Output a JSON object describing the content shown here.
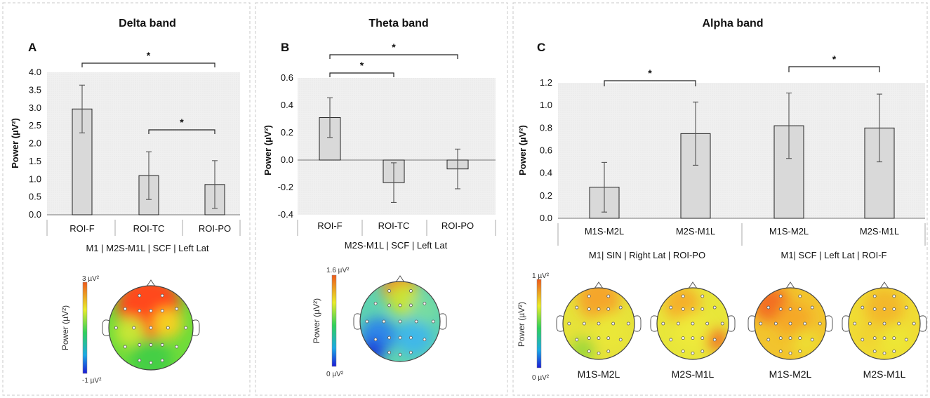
{
  "chart_data": [
    {
      "type": "bar",
      "panel": "A",
      "title": "Delta band",
      "ylabel": "Power (µV²)",
      "ylim": [
        0,
        4
      ],
      "yticks": [
        "0.0",
        "0.5",
        "1.0",
        "1.5",
        "2.0",
        "2.5",
        "3.0",
        "3.5",
        "4.0"
      ],
      "categories": [
        "ROI-F",
        "ROI-TC",
        "ROI-PO"
      ],
      "values": [
        2.97,
        1.1,
        0.85
      ],
      "errors": [
        0.67,
        0.67,
        0.67
      ],
      "condition": "M1 | M2S-M1L | SCF | Left Lat",
      "significance": [
        {
          "from": 0,
          "to": 2,
          "label": "*"
        },
        {
          "from": 1,
          "to": 2,
          "label": "*"
        }
      ],
      "colorbar": {
        "max": "3 µV²",
        "min": "-1 µV²",
        "label": "Power (µV²)"
      },
      "topomaps": [
        {
          "label": "",
          "pattern": "delta"
        }
      ]
    },
    {
      "type": "bar",
      "panel": "B",
      "title": "Theta band",
      "ylabel": "Power (µV²)",
      "ylim": [
        -0.4,
        0.6
      ],
      "yticks": [
        "-0.4",
        "-0.2",
        "0.0",
        "0.2",
        "0.4",
        "0.6"
      ],
      "categories": [
        "ROI-F",
        "ROI-TC",
        "ROI-PO"
      ],
      "values": [
        0.31,
        -0.165,
        -0.065
      ],
      "errors": [
        0.145,
        0.145,
        0.145
      ],
      "condition": "M2S-M1L | SCF | Left Lat",
      "significance": [
        {
          "from": 0,
          "to": 2,
          "label": "*"
        },
        {
          "from": 0,
          "to": 1,
          "label": "*"
        }
      ],
      "colorbar": {
        "max": "1.6 µV²",
        "min": "0 µV²",
        "label": "Power (µV²)"
      },
      "topomaps": [
        {
          "label": "",
          "pattern": "theta"
        }
      ]
    },
    {
      "type": "bar",
      "panel": "C",
      "title": "Alpha band",
      "ylabel": "Power (µV²)",
      "ylim": [
        0,
        1.2
      ],
      "yticks": [
        "0.0",
        "0.2",
        "0.4",
        "0.6",
        "0.8",
        "1.0",
        "1.2"
      ],
      "categories": [
        "M1S-M2L",
        "M2S-M1L",
        "M1S-M2L",
        "M2S-M1L"
      ],
      "values": [
        0.275,
        0.75,
        0.82,
        0.8
      ],
      "errors": [
        0.22,
        0.28,
        0.29,
        0.3
      ],
      "groups": [
        {
          "label": "M1| SIN | Right Lat | ROI-PO",
          "categories": [
            0,
            1
          ]
        },
        {
          "label": "M1| SCF | Left Lat | ROI-F",
          "categories": [
            2,
            3
          ]
        }
      ],
      "significance": [
        {
          "from": 0,
          "to": 1,
          "label": "*"
        },
        {
          "from": 2,
          "to": 3,
          "label": "*"
        }
      ],
      "colorbar": {
        "max": "1 µV²",
        "min": "0 µV²",
        "label": "Power (µV²)"
      },
      "topomaps": [
        {
          "label": "M1S-M2L",
          "pattern": "alpha1"
        },
        {
          "label": "M2S-M1L",
          "pattern": "alpha2"
        },
        {
          "label": "M1S-M2L",
          "pattern": "alpha3"
        },
        {
          "label": "M2S-M1L",
          "pattern": "alpha4"
        }
      ]
    }
  ]
}
